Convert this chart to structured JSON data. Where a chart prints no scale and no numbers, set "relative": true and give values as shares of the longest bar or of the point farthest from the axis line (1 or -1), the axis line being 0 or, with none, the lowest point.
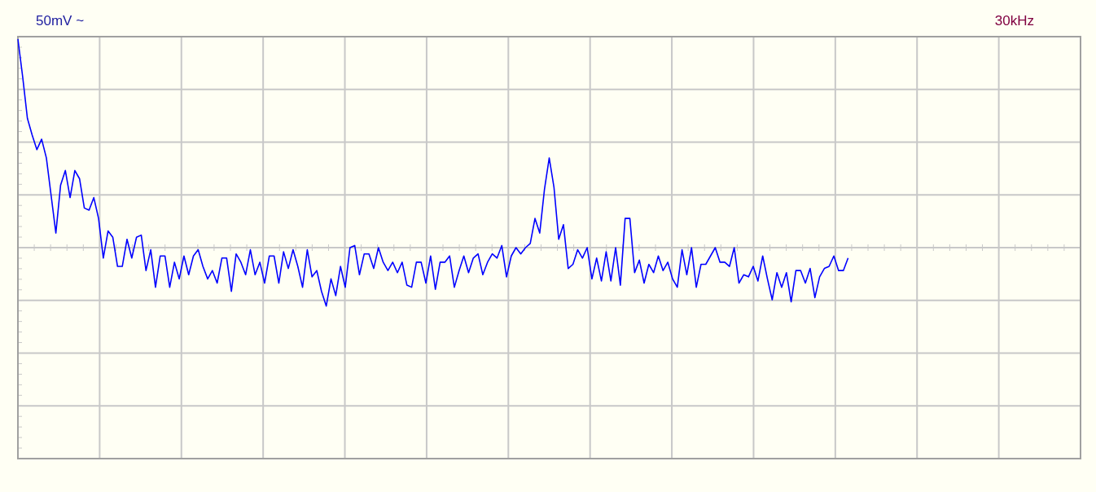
{
  "chart_data": {
    "type": "line",
    "relative": true,
    "grid": true,
    "color": "#0000ff",
    "annotations": [
      "50mV ~",
      "30kHz"
    ],
    "categories": [
      null,
      null,
      null,
      null,
      null,
      null,
      null,
      null,
      null,
      null,
      null,
      null,
      null,
      null,
      null,
      null,
      null,
      null,
      null,
      null,
      null,
      null,
      null,
      null,
      null,
      null,
      null,
      null,
      null,
      null,
      null,
      null,
      null,
      null,
      null,
      null,
      null,
      null,
      null,
      null,
      null,
      null,
      null,
      null,
      null,
      null,
      null,
      null,
      null,
      null,
      null,
      null,
      null,
      null,
      null,
      null,
      null,
      null,
      null,
      null,
      null,
      null,
      null,
      null,
      null,
      null,
      null,
      null,
      null,
      null,
      null,
      null,
      null,
      null,
      null,
      null,
      null,
      null,
      null,
      null,
      null,
      null,
      null,
      null,
      null,
      null,
      null,
      null,
      null,
      null,
      null,
      null,
      null,
      null,
      null,
      null,
      null,
      null,
      null,
      null,
      null,
      null,
      null,
      null,
      null,
      null,
      null,
      null,
      null,
      null,
      null,
      null,
      null,
      null,
      null,
      null,
      null,
      null,
      null,
      null,
      null,
      null,
      null,
      null,
      null,
      null,
      null,
      null,
      null,
      null,
      null,
      null,
      null,
      null,
      null,
      null,
      null,
      null,
      null,
      null,
      null,
      null,
      null,
      null,
      null,
      null,
      null,
      null,
      null,
      null,
      null,
      null,
      null,
      null,
      null,
      null,
      null,
      null,
      null,
      null,
      null,
      null,
      null,
      null,
      null,
      null,
      null,
      null,
      null,
      null,
      null,
      null,
      null,
      null,
      null,
      null,
      null,
      null,
      null,
      null,
      null,
      null,
      null,
      null,
      null,
      null,
      null,
      null,
      null,
      null,
      null,
      null,
      null,
      null,
      null,
      null,
      null,
      null,
      null,
      null,
      null,
      null,
      null,
      null,
      null,
      null,
      null,
      null,
      null,
      null,
      null,
      null,
      null,
      null,
      null,
      null,
      null,
      null,
      null,
      null,
      null,
      null,
      null,
      null,
      null
    ],
    "values": [
      1.0,
      0.82,
      0.62,
      0.54,
      0.47,
      0.52,
      0.43,
      0.25,
      0.07,
      0.3,
      0.37,
      0.24,
      0.37,
      0.33,
      0.19,
      0.18,
      0.24,
      0.14,
      -0.05,
      0.08,
      0.05,
      -0.09,
      -0.09,
      0.04,
      -0.05,
      0.05,
      0.06,
      -0.11,
      -0.01,
      -0.19,
      -0.04,
      -0.04,
      -0.19,
      -0.07,
      -0.15,
      -0.04,
      -0.13,
      -0.04,
      -0.01,
      -0.09,
      -0.15,
      -0.11,
      -0.17,
      -0.05,
      -0.05,
      -0.21,
      -0.03,
      -0.07,
      -0.13,
      -0.01,
      -0.13,
      -0.07,
      -0.17,
      -0.04,
      -0.04,
      -0.17,
      -0.02,
      -0.1,
      -0.01,
      -0.09,
      -0.19,
      -0.01,
      -0.14,
      -0.11,
      -0.21,
      -0.28,
      -0.15,
      -0.23,
      -0.09,
      -0.19,
      0.0,
      0.01,
      -0.13,
      -0.03,
      -0.03,
      -0.1,
      0.0,
      -0.07,
      -0.11,
      -0.07,
      -0.12,
      -0.07,
      -0.18,
      -0.19,
      -0.07,
      -0.07,
      -0.17,
      -0.04,
      -0.2,
      -0.07,
      -0.07,
      -0.04,
      -0.19,
      -0.11,
      -0.04,
      -0.12,
      -0.05,
      -0.03,
      -0.13,
      -0.07,
      -0.03,
      -0.05,
      0.01,
      -0.14,
      -0.04,
      0.0,
      -0.03,
      0.0,
      0.02,
      0.14,
      0.07,
      0.28,
      0.43,
      0.29,
      0.04,
      0.11,
      -0.1,
      -0.08,
      -0.01,
      -0.05,
      0.0,
      -0.15,
      -0.05,
      -0.16,
      -0.02,
      -0.16,
      0.0,
      -0.18,
      0.14,
      0.14,
      -0.12,
      -0.06,
      -0.17,
      -0.08,
      -0.12,
      -0.04,
      -0.11,
      -0.07,
      -0.15,
      -0.19,
      -0.01,
      -0.13,
      0.0,
      -0.19,
      -0.08,
      -0.08,
      -0.04,
      0.0,
      -0.07,
      -0.07,
      -0.09,
      0.0,
      -0.17,
      -0.13,
      -0.14,
      -0.09,
      -0.16,
      -0.04,
      -0.15,
      -0.25,
      -0.12,
      -0.19,
      -0.12,
      -0.26,
      -0.11,
      -0.11,
      -0.17,
      -0.1,
      -0.24,
      -0.14,
      -0.1,
      -0.09,
      -0.04,
      -0.11,
      -0.11,
      -0.05,
      null,
      null,
      null,
      null,
      null,
      null,
      null,
      null,
      null,
      null,
      null,
      null,
      null,
      null,
      null,
      null,
      null,
      null,
      null,
      null,
      null,
      null,
      null,
      null,
      null,
      null,
      null,
      null,
      null,
      null,
      null,
      null,
      null,
      null,
      null,
      null,
      null,
      null,
      null,
      null,
      null,
      null,
      null,
      null,
      null,
      null,
      null,
      null,
      null
    ]
  }
}
